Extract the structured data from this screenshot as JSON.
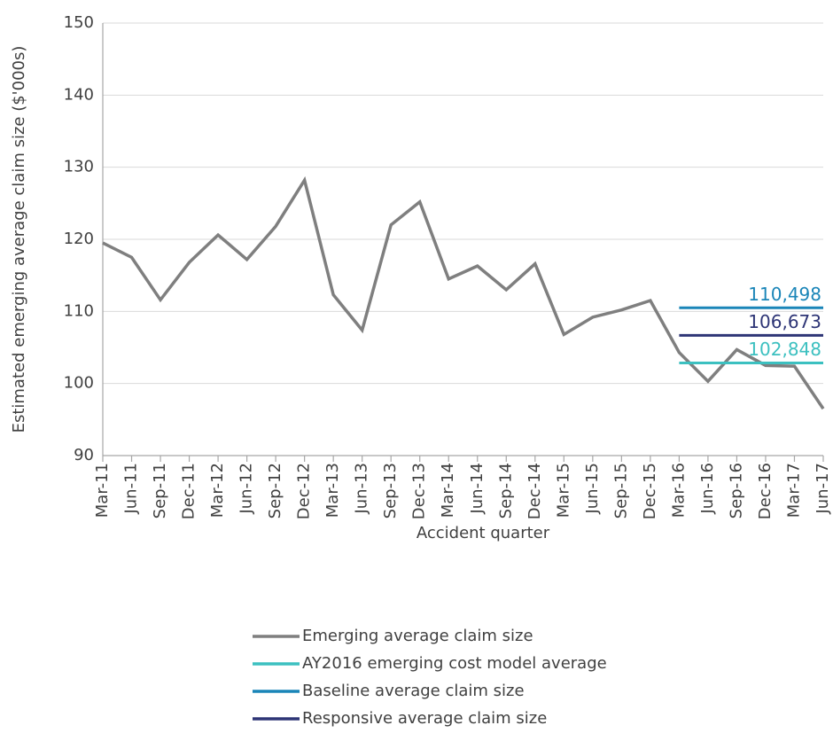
{
  "chart_data": {
    "type": "line",
    "x_label": "Accident quarter",
    "y_label": "Estimated emerging average claim size  ($'000s)",
    "categories": [
      "Mar-11",
      "Jun-11",
      "Sep-11",
      "Dec-11",
      "Mar-12",
      "Jun-12",
      "Sep-12",
      "Dec-12",
      "Mar-13",
      "Jun-13",
      "Sep-13",
      "Dec-13",
      "Mar-14",
      "Jun-14",
      "Sep-14",
      "Dec-14",
      "Mar-15",
      "Jun-15",
      "Sep-15",
      "Dec-15",
      "Mar-16",
      "Jun-16",
      "Sep-16",
      "Dec-16",
      "Mar-17",
      "Jun-17"
    ],
    "series": [
      {
        "name": "Emerging average claim size",
        "color": "#7f7f7f",
        "values": [
          119.5,
          117.5,
          111.6,
          116.8,
          120.6,
          117.2,
          121.8,
          128.2,
          112.3,
          107.4,
          122.0,
          125.2,
          114.5,
          116.3,
          113.0,
          116.6,
          106.8,
          109.2,
          110.2,
          111.5,
          104.3,
          100.3,
          104.7,
          102.5,
          102.4,
          96.5
        ]
      },
      {
        "name": "AY2016 emerging cost model average",
        "color": "#3cc0c0",
        "values": [
          null,
          null,
          null,
          null,
          null,
          null,
          null,
          null,
          null,
          null,
          null,
          null,
          null,
          null,
          null,
          null,
          null,
          null,
          null,
          null,
          102.848,
          102.848,
          102.848,
          102.848,
          102.848,
          102.848
        ],
        "value_labels": [
          null,
          null,
          null,
          null,
          null,
          null,
          null,
          null,
          null,
          null,
          null,
          null,
          null,
          null,
          null,
          null,
          null,
          null,
          null,
          null,
          null,
          null,
          null,
          null,
          null,
          "102,848"
        ]
      },
      {
        "name": "Baseline average claim size",
        "color": "#1a85b8",
        "values": [
          null,
          null,
          null,
          null,
          null,
          null,
          null,
          null,
          null,
          null,
          null,
          null,
          null,
          null,
          null,
          null,
          null,
          null,
          null,
          null,
          110.498,
          110.498,
          110.498,
          110.498,
          110.498,
          110.498
        ],
        "value_labels": [
          null,
          null,
          null,
          null,
          null,
          null,
          null,
          null,
          null,
          null,
          null,
          null,
          null,
          null,
          null,
          null,
          null,
          null,
          null,
          null,
          null,
          null,
          null,
          null,
          null,
          "110,498"
        ]
      },
      {
        "name": "Responsive average claim size",
        "color": "#2e3576",
        "values": [
          null,
          null,
          null,
          null,
          null,
          null,
          null,
          null,
          null,
          null,
          null,
          null,
          null,
          null,
          null,
          null,
          null,
          null,
          null,
          null,
          106.673,
          106.673,
          106.673,
          106.673,
          106.673,
          106.673
        ],
        "value_labels": [
          null,
          null,
          null,
          null,
          null,
          null,
          null,
          null,
          null,
          null,
          null,
          null,
          null,
          null,
          null,
          null,
          null,
          null,
          null,
          null,
          null,
          null,
          null,
          null,
          null,
          "106,673"
        ]
      }
    ],
    "ylim": [
      90,
      150
    ],
    "yticks": [
      90,
      100,
      110,
      120,
      130,
      140,
      150
    ],
    "grid": true,
    "legend": "bottom"
  }
}
